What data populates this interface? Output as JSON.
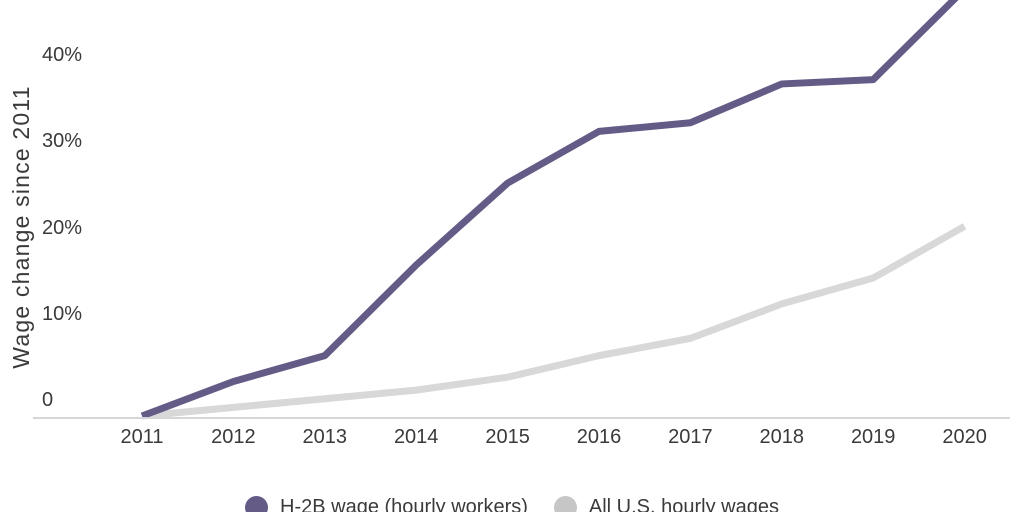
{
  "chart": {
    "y_axis_title": "Wage change since 2011",
    "colors": {
      "h2b_line": "#645c87",
      "us_line": "#d8d8d8",
      "us_legend_dot": "#c6c6c6",
      "axis_line": "#d6d6d6",
      "text": "#3a3a3a"
    }
  },
  "chart_data": {
    "type": "line",
    "title": "",
    "xlabel": "",
    "ylabel": "Wage change since 2011",
    "x": [
      2011,
      2012,
      2013,
      2014,
      2015,
      2016,
      2017,
      2018,
      2019,
      2020
    ],
    "x_tick_labels": [
      "2011",
      "2012",
      "2013",
      "2014",
      "2015",
      "2016",
      "2017",
      "2018",
      "2019",
      "2020"
    ],
    "y_ticks": [
      {
        "label": "40%",
        "value": 40
      },
      {
        "label": "30%",
        "value": 30
      },
      {
        "label": "20%",
        "value": 20
      },
      {
        "label": "10%",
        "value": 10
      },
      {
        "label": "0",
        "value": 0
      }
    ],
    "ylim_visible": [
      0,
      48
    ],
    "grid": false,
    "legend_position": "bottom",
    "series": [
      {
        "name": "H-2B wage (hourly workers)",
        "color": "#645c87",
        "values": [
          0,
          4,
          7,
          17.5,
          27,
          33,
          34,
          38.5,
          39,
          49.5
        ]
      },
      {
        "name": "All U.S. hourly wages",
        "color": "#d8d8d8",
        "legend_color": "#c6c6c6",
        "values": [
          0,
          1,
          2,
          3,
          4.5,
          7,
          9,
          13,
          16,
          22
        ]
      }
    ]
  }
}
